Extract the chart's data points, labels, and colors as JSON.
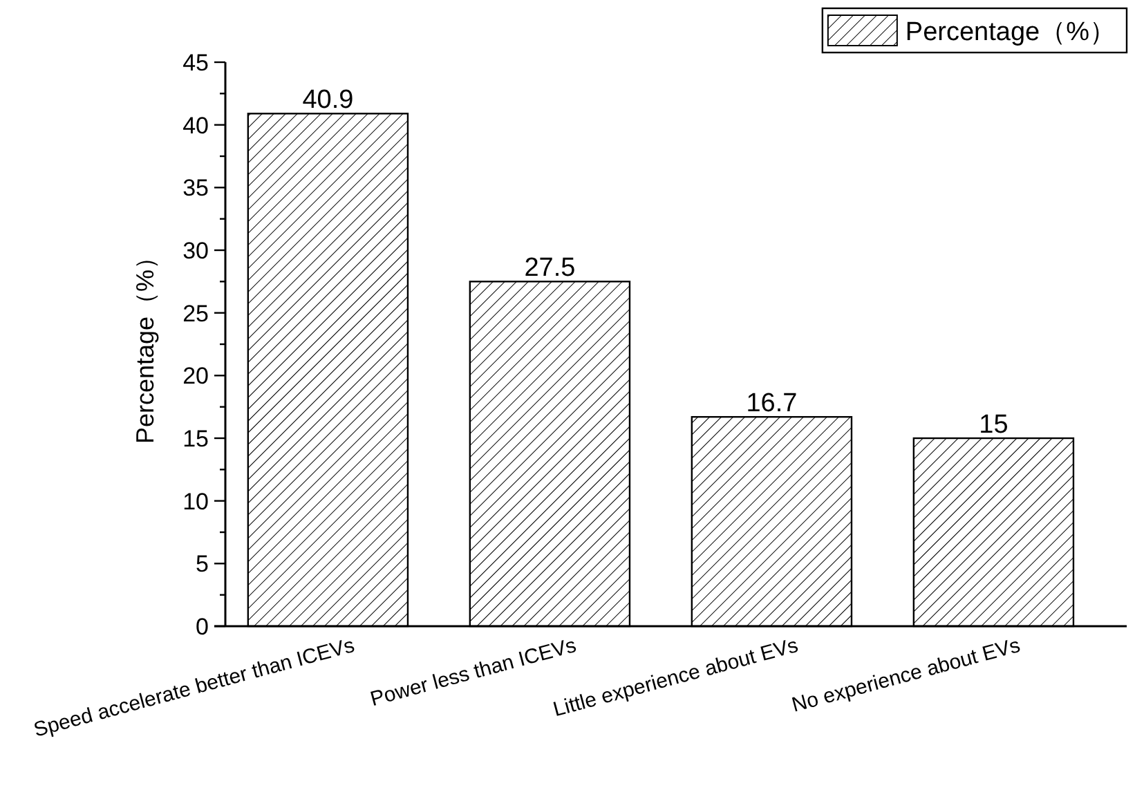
{
  "chart_data": {
    "type": "bar",
    "ylabel": "Percentage（%）",
    "categories": [
      "Speed accelerate better than ICEVs",
      "Power less than ICEVs",
      "Little experience about EVs",
      "No experience about EVs"
    ],
    "series": [
      {
        "name": "Percentage（%）",
        "color": "#000000",
        "values": [
          40.9,
          27.5,
          16.7,
          15
        ]
      }
    ],
    "ylim": [
      0,
      45
    ],
    "yticks": [
      0,
      5,
      10,
      15,
      20,
      25,
      30,
      35,
      40,
      45
    ],
    "data_labels": true,
    "legend": "top right"
  }
}
